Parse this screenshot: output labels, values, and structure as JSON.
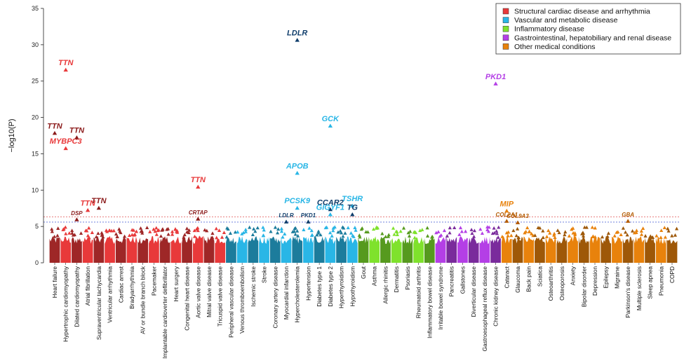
{
  "chart_data": {
    "type": "scatter",
    "subtype": "manhattan",
    "ylabel": "−log10(P)",
    "ylim": [
      0,
      35
    ],
    "yticks": [
      0,
      5,
      10,
      15,
      20,
      25,
      30,
      35
    ],
    "threshold_lines": [
      6.3,
      5.6
    ],
    "legend": {
      "placement": "top-right",
      "entries": [
        {
          "name": "Structural cardiac disease and arrhythmia",
          "color": "#e8393a"
        },
        {
          "name": "Vascular and metabolic disease",
          "color": "#29b6e6"
        },
        {
          "name": "Inflammatory disease",
          "color": "#7fe22c"
        },
        {
          "name": "Gastrointestinal, hepatobiliary and renal disease",
          "color": "#b43fe6"
        },
        {
          "name": "Other medical conditions",
          "color": "#e8820c"
        }
      ]
    },
    "categories": [
      {
        "name": "Heart failure",
        "group": 0
      },
      {
        "name": "Hypertrophic cardiomyopathy",
        "group": 0
      },
      {
        "name": "Dilated cardiomyopathy",
        "group": 0
      },
      {
        "name": "Atrial fibrillation",
        "group": 0
      },
      {
        "name": "Supraventricular tachycardia",
        "group": 0
      },
      {
        "name": "Ventricular arrhythmia",
        "group": 0
      },
      {
        "name": "Cardiac arrest",
        "group": 0
      },
      {
        "name": "Bradyarrhythmia",
        "group": 0
      },
      {
        "name": "AV or bundle branch block",
        "group": 0
      },
      {
        "name": "Pacemaker",
        "group": 0
      },
      {
        "name": "Implantable cardioverter defibrillator",
        "group": 0
      },
      {
        "name": "Heart surgery",
        "group": 0
      },
      {
        "name": "Congenital heart disease",
        "group": 0
      },
      {
        "name": "Aortic valve disease",
        "group": 0
      },
      {
        "name": "Mitral valve disease",
        "group": 0
      },
      {
        "name": "Tricuspid valve disease",
        "group": 0
      },
      {
        "name": "Peripheral vascular disease",
        "group": 1
      },
      {
        "name": "Venous thromboembolism",
        "group": 1
      },
      {
        "name": "Ischemic stroke",
        "group": 1
      },
      {
        "name": "Stroke",
        "group": 1
      },
      {
        "name": "Coronary artery disease",
        "group": 1
      },
      {
        "name": "Myocardial infarction",
        "group": 1
      },
      {
        "name": "Hypercholesterolemia",
        "group": 1
      },
      {
        "name": "Hypertension",
        "group": 1
      },
      {
        "name": "Diabetes type 1",
        "group": 1
      },
      {
        "name": "Diabetes type 2",
        "group": 1
      },
      {
        "name": "Hyperthyroidism",
        "group": 1
      },
      {
        "name": "Hypothyroidism",
        "group": 1
      },
      {
        "name": "Gout",
        "group": 2
      },
      {
        "name": "Asthma",
        "group": 2
      },
      {
        "name": "Allergic rhinitis",
        "group": 2
      },
      {
        "name": "Dermatitis",
        "group": 2
      },
      {
        "name": "Psoriasis",
        "group": 2
      },
      {
        "name": "Rheumatoid arthritis",
        "group": 2
      },
      {
        "name": "Inflammatory bowel disease",
        "group": 2
      },
      {
        "name": "Irritable bowel syndrome",
        "group": 3
      },
      {
        "name": "Pancreatitis",
        "group": 3
      },
      {
        "name": "Gallstones",
        "group": 3
      },
      {
        "name": "Diverticular disease",
        "group": 3
      },
      {
        "name": "Gastroesophageal reflux disease",
        "group": 3
      },
      {
        "name": "Chronic kidney disease",
        "group": 3
      },
      {
        "name": "Cataract",
        "group": 4
      },
      {
        "name": "Glaucoma",
        "group": 4
      },
      {
        "name": "Back pain",
        "group": 4
      },
      {
        "name": "Sciatica",
        "group": 4
      },
      {
        "name": "Osteoarthritis",
        "group": 4
      },
      {
        "name": "Osteoporosis",
        "group": 4
      },
      {
        "name": "Anxiety",
        "group": 4
      },
      {
        "name": "Bipolar disorder",
        "group": 4
      },
      {
        "name": "Depression",
        "group": 4
      },
      {
        "name": "Epilepsy",
        "group": 4
      },
      {
        "name": "Migraine",
        "group": 4
      },
      {
        "name": "Parkinson's disease",
        "group": 4
      },
      {
        "name": "Multiple sclerosis",
        "group": 4
      },
      {
        "name": "Sleep apnea",
        "group": 4
      },
      {
        "name": "Pneumonia",
        "group": 4
      },
      {
        "name": "COPD",
        "group": 4
      }
    ],
    "genes": [
      {
        "gene": "TTN",
        "category": 0,
        "value": 17.8
      },
      {
        "gene": "TTN",
        "category": 1,
        "value": 26.5
      },
      {
        "gene": "MYBPC3",
        "category": 1,
        "value": 15.7
      },
      {
        "gene": "TTN",
        "category": 2,
        "value": 17.2
      },
      {
        "gene": "DSP",
        "category": 2,
        "value": 5.9
      },
      {
        "gene": "TTN",
        "category": 3,
        "value": 7.2
      },
      {
        "gene": "TTN",
        "category": 4,
        "value": 7.5
      },
      {
        "gene": "TTN",
        "category": 13,
        "value": 10.4
      },
      {
        "gene": "CRTAP",
        "category": 13,
        "value": 6.0
      },
      {
        "gene": "LDLR",
        "category": 22,
        "value": 30.6
      },
      {
        "gene": "APOB",
        "category": 22,
        "value": 12.3
      },
      {
        "gene": "PCSK9",
        "category": 22,
        "value": 7.5
      },
      {
        "gene": "LDLR",
        "category": 21,
        "value": 5.6
      },
      {
        "gene": "PKD1",
        "category": 23,
        "value": 5.6
      },
      {
        "gene": "GCK",
        "category": 25,
        "value": 18.8
      },
      {
        "gene": "CCAR2",
        "category": 25,
        "value": 7.3
      },
      {
        "gene": "GIGYF1",
        "category": 25,
        "value": 6.6
      },
      {
        "gene": "TSHR",
        "category": 27,
        "value": 7.8
      },
      {
        "gene": "TG",
        "category": 27,
        "value": 6.6
      },
      {
        "gene": "PKD1",
        "category": 40,
        "value": 24.6
      },
      {
        "gene": "MIP",
        "category": 41,
        "value": 7.1
      },
      {
        "gene": "COL2A1",
        "category": 41,
        "value": 5.7
      },
      {
        "gene": "COL9A3",
        "category": 42,
        "value": 5.5
      },
      {
        "gene": "GBA",
        "category": 52,
        "value": 5.7
      }
    ]
  }
}
